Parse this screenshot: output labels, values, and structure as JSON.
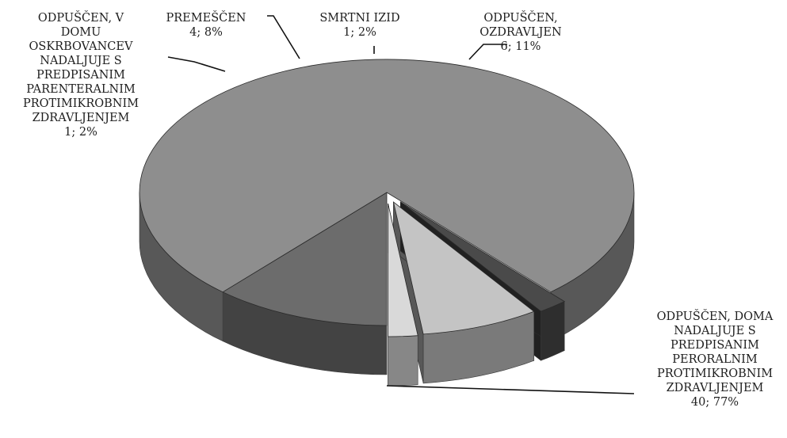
{
  "chart_data": {
    "type": "pie",
    "style": "3d-exploded",
    "title": "",
    "slices": [
      {
        "label_lines": [
          "ODPUŠČEN,",
          "OZDRAVLJEN"
        ],
        "value_label": "6; 11%",
        "value": 6,
        "percent": 11,
        "color": "#6c6c6c"
      },
      {
        "label_lines": [
          "ODPUŠČEN, DOMA",
          "NADALJUJE S",
          "PREDPISANIM",
          "PERORALNIM",
          "PROTIMIKROBNIM",
          "ZDRAVLJENJEM"
        ],
        "value_label": "40; 77%",
        "value": 40,
        "percent": 77,
        "color": "#8e8e8e"
      },
      {
        "label_lines": [
          "ODPUŠČEN, V",
          "DOMU",
          "OSKRBOVANCEV",
          "NADALJUJE S",
          "PREDPISANIM",
          "PARENTERALNIM",
          "PROTIMIKROBNIM",
          "ZDRAVLJENJEM"
        ],
        "value_label": "1; 2%",
        "value": 1,
        "percent": 2,
        "color": "#4a4a4a"
      },
      {
        "label_lines": [
          "PREMEŠČEN"
        ],
        "value_label": "4; 8%",
        "value": 4,
        "percent": 8,
        "color": "#c4c4c4"
      },
      {
        "label_lines": [
          "SMRTNI IZID"
        ],
        "value_label": "1; 2%",
        "value": 1,
        "percent": 2,
        "color": "#d9d9d9"
      }
    ]
  }
}
